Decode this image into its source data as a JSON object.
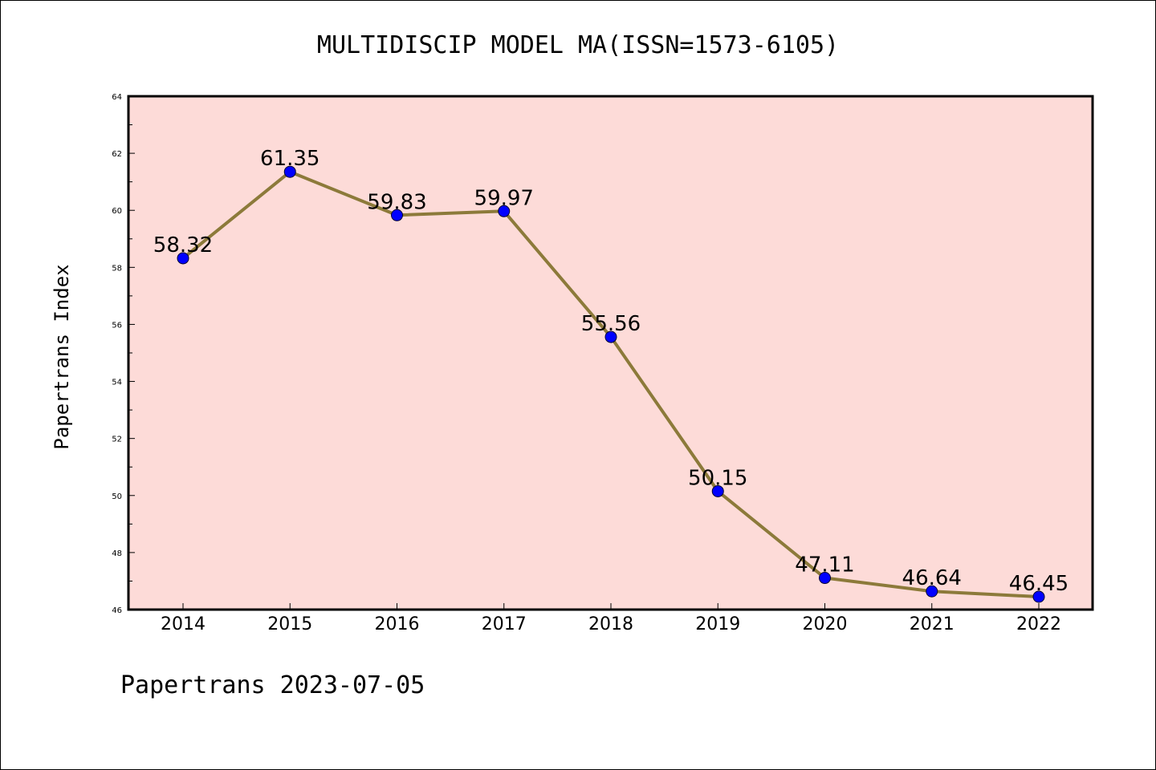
{
  "chart_data": {
    "type": "line",
    "title": "MULTIDISCIP MODEL MA(ISSN=1573-6105)",
    "ylabel": "Papertrans Index",
    "xlabel": "",
    "footer": "Papertrans 2023-07-05",
    "categories": [
      "2014",
      "2015",
      "2016",
      "2017",
      "2018",
      "2019",
      "2020",
      "2021",
      "2022"
    ],
    "values": [
      58.32,
      61.35,
      59.83,
      59.97,
      55.56,
      50.15,
      47.11,
      46.64,
      46.45
    ],
    "data_labels": [
      "58.32",
      "61.35",
      "59.83",
      "59.97",
      "55.56",
      "50.15",
      "47.11",
      "46.64",
      "46.45"
    ],
    "ylim": [
      46,
      64
    ],
    "yticks": [
      "46",
      "48",
      "50",
      "52",
      "54",
      "56",
      "58",
      "60",
      "62",
      "64"
    ],
    "grid": false,
    "legend": "none",
    "colors": {
      "plot_background": "#fddbd8",
      "line": "#8c7a3a",
      "marker": "#0000ff"
    }
  }
}
